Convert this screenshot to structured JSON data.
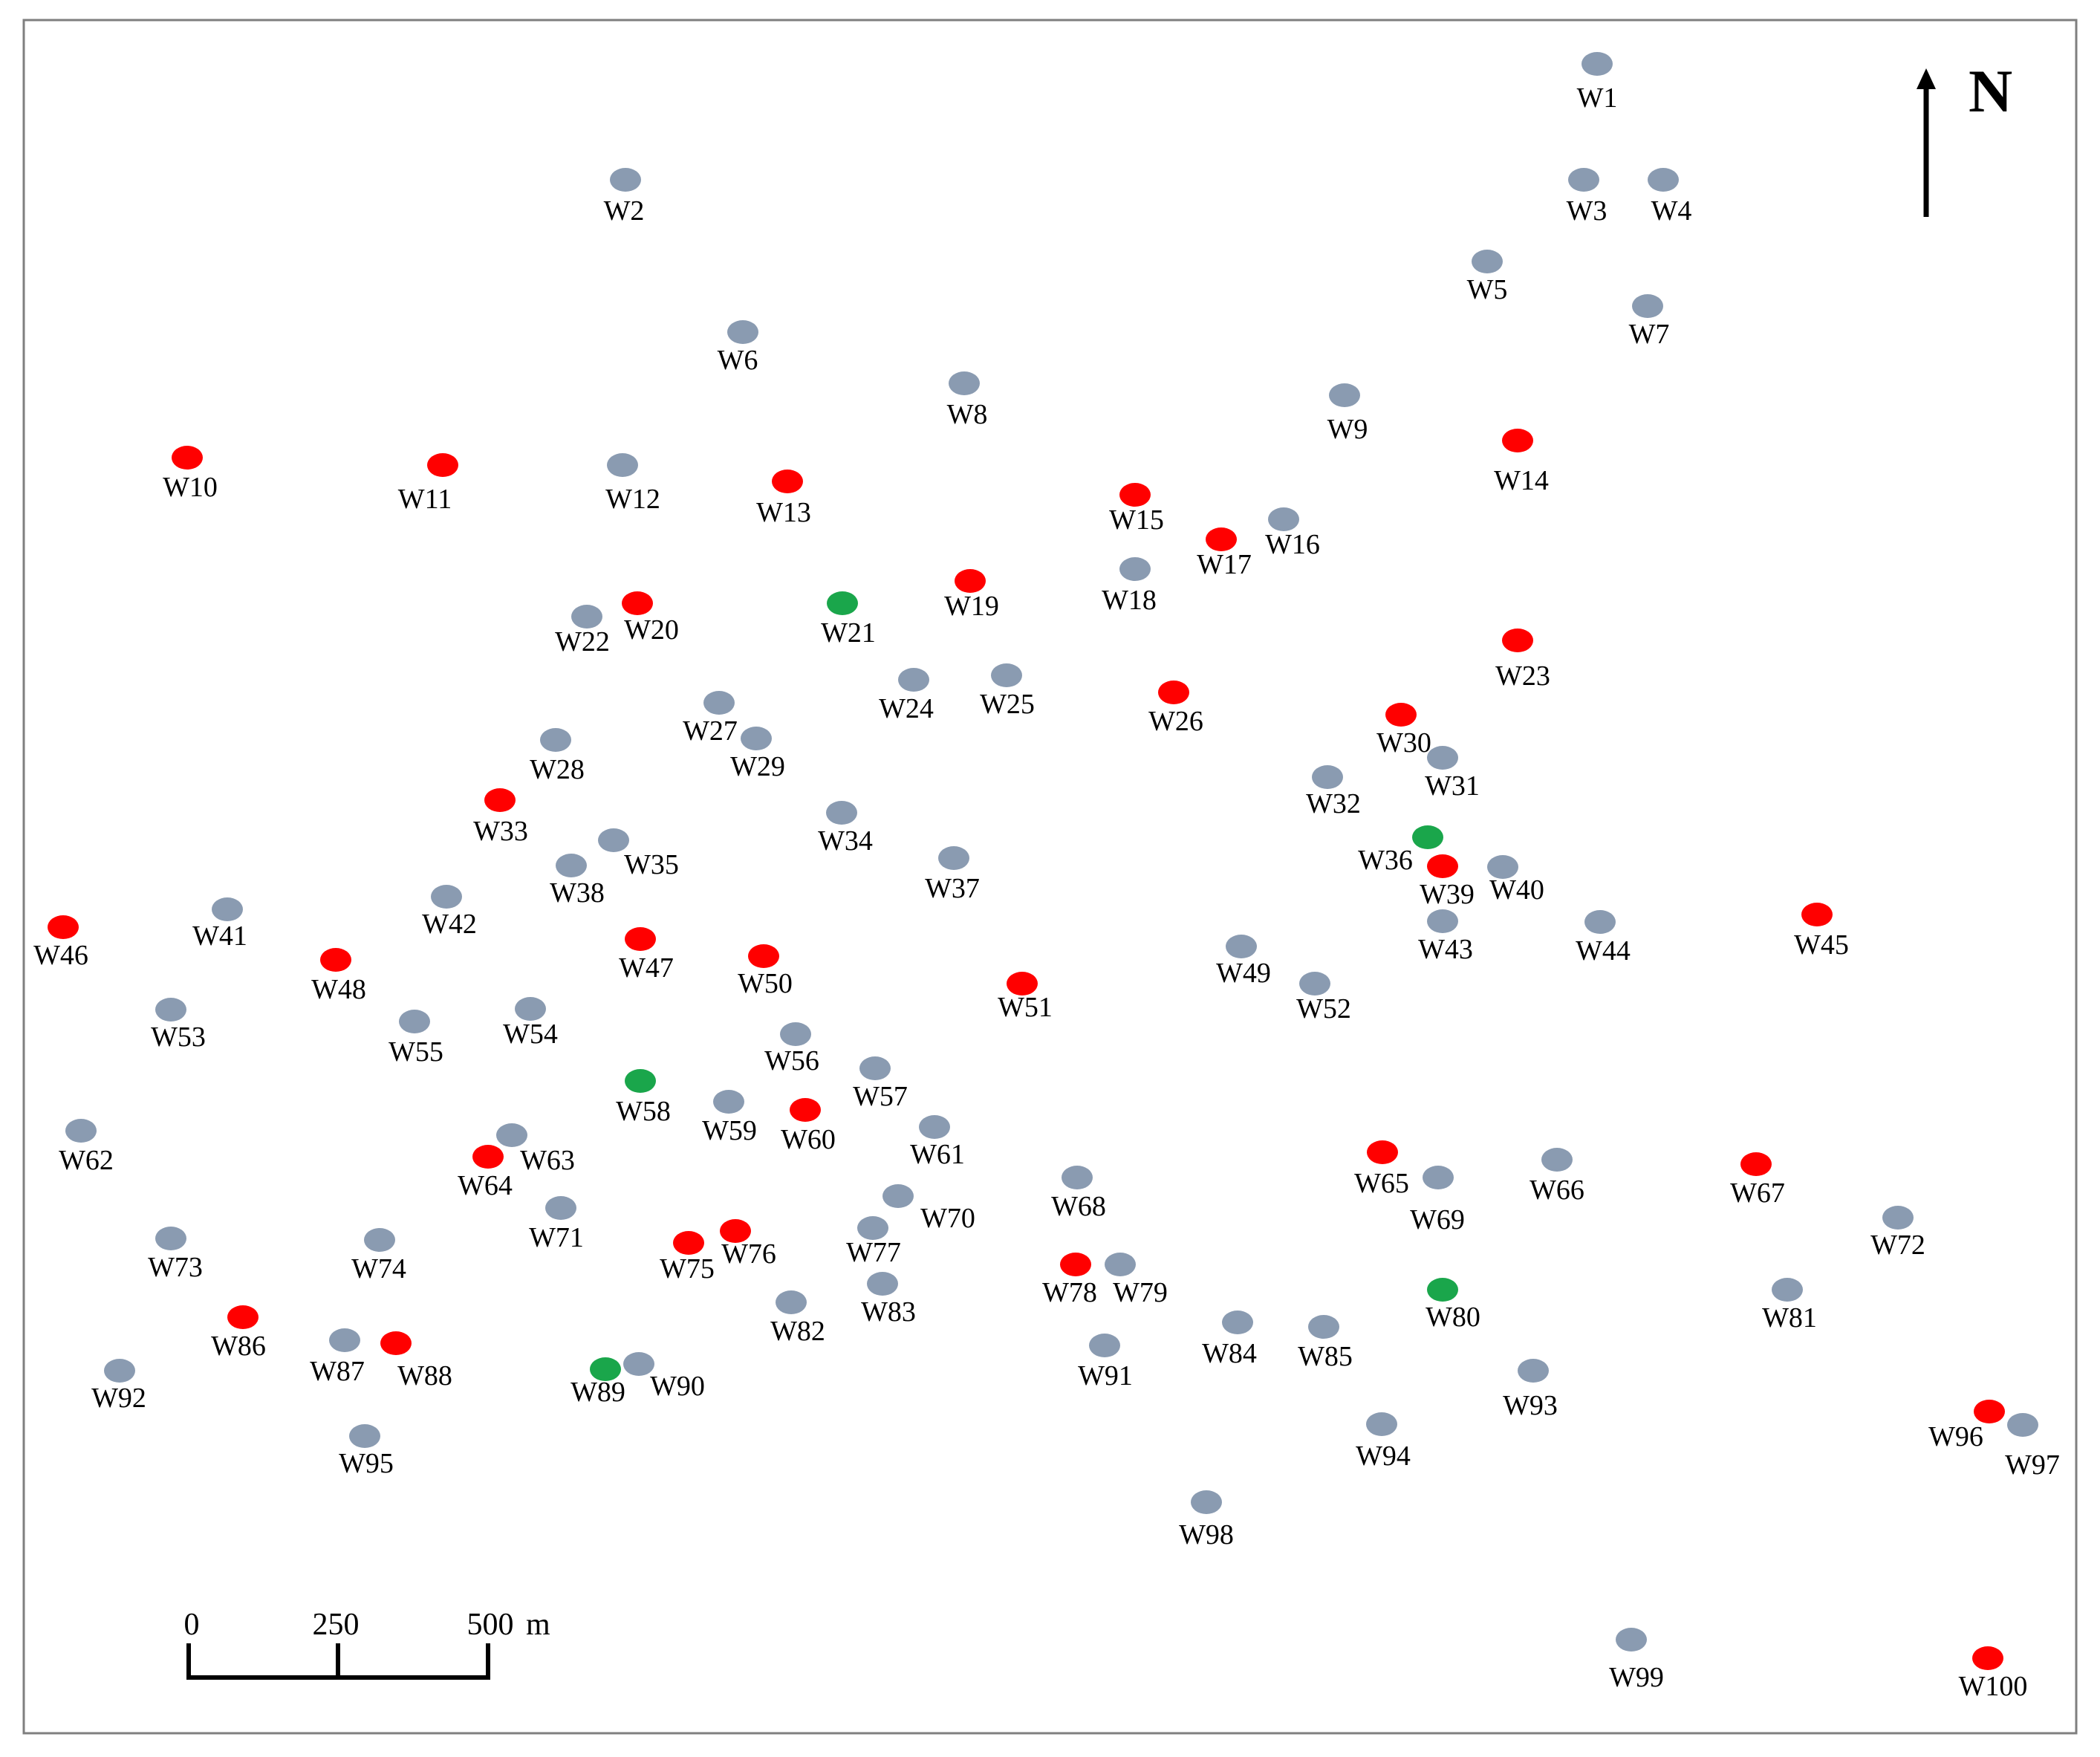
{
  "map": {
    "colors": {
      "gray": "#8a9bb1",
      "red": "#ff0000",
      "green": "#1aa64b",
      "frame": "#7f7f7f"
    },
    "north_label": "N",
    "scale": {
      "labels": [
        "0",
        "250",
        "500"
      ],
      "unit": "m"
    },
    "wells": [
      {
        "id": "W1",
        "label": "W1",
        "status": "gray"
      },
      {
        "id": "W2",
        "label": "W2",
        "status": "gray"
      },
      {
        "id": "W3",
        "label": "W3",
        "status": "gray"
      },
      {
        "id": "W4",
        "label": "W4",
        "status": "gray"
      },
      {
        "id": "W5",
        "label": "W5",
        "status": "gray"
      },
      {
        "id": "W6",
        "label": "W6",
        "status": "gray"
      },
      {
        "id": "W7",
        "label": "W7",
        "status": "gray"
      },
      {
        "id": "W8",
        "label": "W8",
        "status": "gray"
      },
      {
        "id": "W9",
        "label": "W9",
        "status": "gray"
      },
      {
        "id": "W10",
        "label": "W10",
        "status": "red"
      },
      {
        "id": "W11",
        "label": "W11",
        "status": "red"
      },
      {
        "id": "W12",
        "label": "W12",
        "status": "gray"
      },
      {
        "id": "W13",
        "label": "W13",
        "status": "red"
      },
      {
        "id": "W14",
        "label": "W14",
        "status": "red"
      },
      {
        "id": "W15",
        "label": "W15",
        "status": "red"
      },
      {
        "id": "W16",
        "label": "W16",
        "status": "gray"
      },
      {
        "id": "W17",
        "label": "W17",
        "status": "red"
      },
      {
        "id": "W18",
        "label": "W18",
        "status": "gray"
      },
      {
        "id": "W19",
        "label": "W19",
        "status": "red"
      },
      {
        "id": "W20",
        "label": "W20",
        "status": "red"
      },
      {
        "id": "W21",
        "label": "W21",
        "status": "green"
      },
      {
        "id": "W22",
        "label": "W22",
        "status": "gray"
      },
      {
        "id": "W23",
        "label": "W23",
        "status": "red"
      },
      {
        "id": "W24",
        "label": "W24",
        "status": "gray"
      },
      {
        "id": "W25",
        "label": "W25",
        "status": "gray"
      },
      {
        "id": "W26",
        "label": "W26",
        "status": "red"
      },
      {
        "id": "W27",
        "label": "W27",
        "status": "gray"
      },
      {
        "id": "W28",
        "label": "W28",
        "status": "gray"
      },
      {
        "id": "W29",
        "label": "W29",
        "status": "gray"
      },
      {
        "id": "W30",
        "label": "W30",
        "status": "red"
      },
      {
        "id": "W31",
        "label": "W31",
        "status": "gray"
      },
      {
        "id": "W32",
        "label": "W32",
        "status": "gray"
      },
      {
        "id": "W33",
        "label": "W33",
        "status": "red"
      },
      {
        "id": "W34",
        "label": "W34",
        "status": "gray"
      },
      {
        "id": "W35",
        "label": "W35",
        "status": "gray"
      },
      {
        "id": "W36",
        "label": "W36",
        "status": "green"
      },
      {
        "id": "W37",
        "label": "W37",
        "status": "gray"
      },
      {
        "id": "W38",
        "label": "W38",
        "status": "gray"
      },
      {
        "id": "W39",
        "label": "W39",
        "status": "red"
      },
      {
        "id": "W40",
        "label": "W40",
        "status": "gray"
      },
      {
        "id": "W41",
        "label": "W41",
        "status": "gray"
      },
      {
        "id": "W42",
        "label": "W42",
        "status": "gray"
      },
      {
        "id": "W43",
        "label": "W43",
        "status": "gray"
      },
      {
        "id": "W44",
        "label": "W44",
        "status": "gray"
      },
      {
        "id": "W45",
        "label": "W45",
        "status": "red"
      },
      {
        "id": "W46",
        "label": "W46",
        "status": "red"
      },
      {
        "id": "W47",
        "label": "W47",
        "status": "red"
      },
      {
        "id": "W48",
        "label": "W48",
        "status": "red"
      },
      {
        "id": "W49",
        "label": "W49",
        "status": "gray"
      },
      {
        "id": "W50",
        "label": "W50",
        "status": "red"
      },
      {
        "id": "W51",
        "label": "W51",
        "status": "red"
      },
      {
        "id": "W52",
        "label": "W52",
        "status": "gray"
      },
      {
        "id": "W53",
        "label": "W53",
        "status": "gray"
      },
      {
        "id": "W54",
        "label": "W54",
        "status": "gray"
      },
      {
        "id": "W55",
        "label": "W55",
        "status": "gray"
      },
      {
        "id": "W56",
        "label": "W56",
        "status": "gray"
      },
      {
        "id": "W57",
        "label": "W57",
        "status": "gray"
      },
      {
        "id": "W58",
        "label": "W58",
        "status": "green"
      },
      {
        "id": "W59",
        "label": "W59",
        "status": "gray"
      },
      {
        "id": "W60",
        "label": "W60",
        "status": "red"
      },
      {
        "id": "W61",
        "label": "W61",
        "status": "gray"
      },
      {
        "id": "W62",
        "label": "W62",
        "status": "gray"
      },
      {
        "id": "W63",
        "label": "W63",
        "status": "gray"
      },
      {
        "id": "W64",
        "label": "W64",
        "status": "red"
      },
      {
        "id": "W65",
        "label": "W65",
        "status": "red"
      },
      {
        "id": "W66",
        "label": "W66",
        "status": "gray"
      },
      {
        "id": "W67",
        "label": "W67",
        "status": "red"
      },
      {
        "id": "W68",
        "label": "W68",
        "status": "gray"
      },
      {
        "id": "W69",
        "label": "W69",
        "status": "gray"
      },
      {
        "id": "W70",
        "label": "W70",
        "status": "gray"
      },
      {
        "id": "W71",
        "label": "W71",
        "status": "gray"
      },
      {
        "id": "W72",
        "label": "W72",
        "status": "gray"
      },
      {
        "id": "W73",
        "label": "W73",
        "status": "gray"
      },
      {
        "id": "W74",
        "label": "W74",
        "status": "gray"
      },
      {
        "id": "W75",
        "label": "W75",
        "status": "red"
      },
      {
        "id": "W76",
        "label": "W76",
        "status": "red"
      },
      {
        "id": "W77",
        "label": "W77",
        "status": "gray"
      },
      {
        "id": "W78",
        "label": "W78",
        "status": "red"
      },
      {
        "id": "W79",
        "label": "W79",
        "status": "gray"
      },
      {
        "id": "W80",
        "label": "W80",
        "status": "green"
      },
      {
        "id": "W81",
        "label": "W81",
        "status": "gray"
      },
      {
        "id": "W82",
        "label": "W82",
        "status": "gray"
      },
      {
        "id": "W83",
        "label": "W83",
        "status": "gray"
      },
      {
        "id": "W84",
        "label": "W84",
        "status": "gray"
      },
      {
        "id": "W85",
        "label": "W85",
        "status": "gray"
      },
      {
        "id": "W86",
        "label": "W86",
        "status": "red"
      },
      {
        "id": "W87",
        "label": "W87",
        "status": "gray"
      },
      {
        "id": "W88",
        "label": "W88",
        "status": "red"
      },
      {
        "id": "W89",
        "label": "W89",
        "status": "green"
      },
      {
        "id": "W90",
        "label": "W90",
        "status": "gray"
      },
      {
        "id": "W91",
        "label": "W91",
        "status": "gray"
      },
      {
        "id": "W92",
        "label": "W92",
        "status": "gray"
      },
      {
        "id": "W93",
        "label": "W93",
        "status": "gray"
      },
      {
        "id": "W94",
        "label": "W94",
        "status": "gray"
      },
      {
        "id": "W95",
        "label": "W95",
        "status": "gray"
      },
      {
        "id": "W96",
        "label": "W96",
        "status": "red"
      },
      {
        "id": "W97",
        "label": "W97",
        "status": "gray"
      },
      {
        "id": "W98",
        "label": "W98",
        "status": "gray"
      },
      {
        "id": "W99",
        "label": "W99",
        "status": "gray"
      },
      {
        "id": "W100",
        "label": "W100",
        "status": "red"
      }
    ]
  }
}
